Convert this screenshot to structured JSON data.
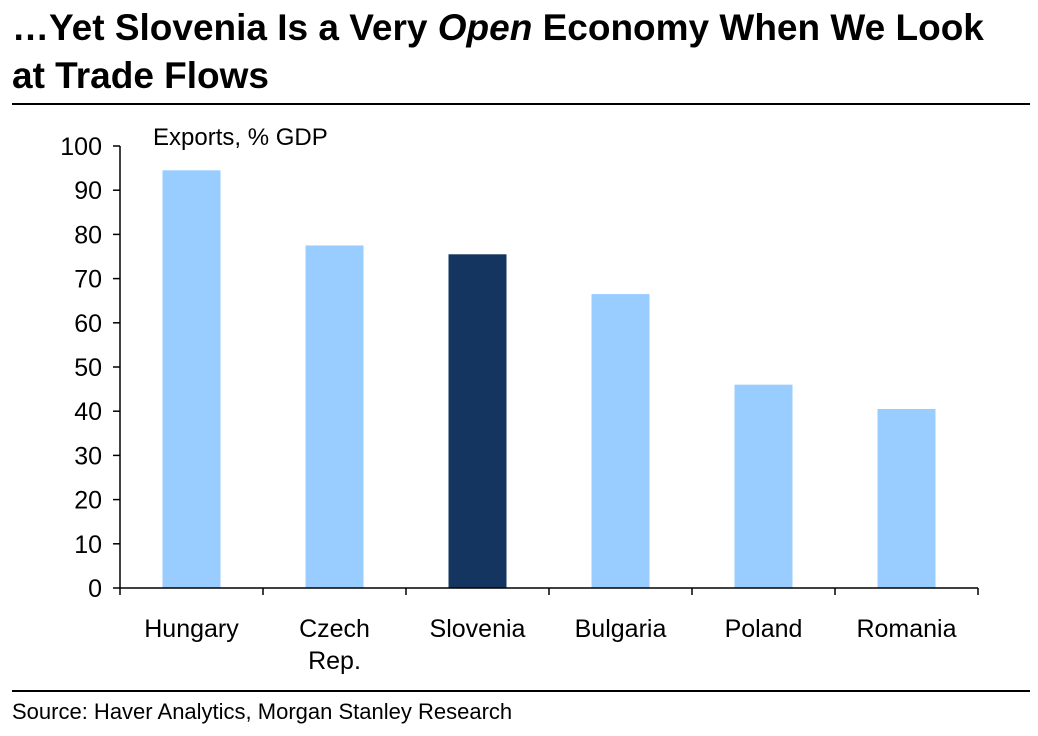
{
  "title": {
    "before": "…Yet Slovenia Is a Very ",
    "emphasis": "Open",
    "after": " Economy When We Look at Trade Flows"
  },
  "source": "Source: Haver Analytics, Morgan Stanley Research",
  "chart_data": {
    "type": "bar",
    "title": "",
    "ylabel": "Exports, % GDP",
    "xlabel": "",
    "ylim": [
      0,
      100
    ],
    "yticks": [
      0,
      10,
      20,
      30,
      40,
      50,
      60,
      70,
      80,
      90,
      100
    ],
    "categories": [
      [
        "Hungary"
      ],
      [
        "Czech",
        "Rep."
      ],
      [
        "Slovenia"
      ],
      [
        "Bulgaria"
      ],
      [
        "Poland"
      ],
      [
        "Romania"
      ]
    ],
    "values": [
      94.5,
      77.5,
      75.5,
      66.5,
      46,
      40.5
    ],
    "highlight_index": 2,
    "colors": {
      "bar": "#99CCFF",
      "highlight": "#14355F",
      "axis": "#000000"
    },
    "grid": false,
    "legend": "none"
  }
}
